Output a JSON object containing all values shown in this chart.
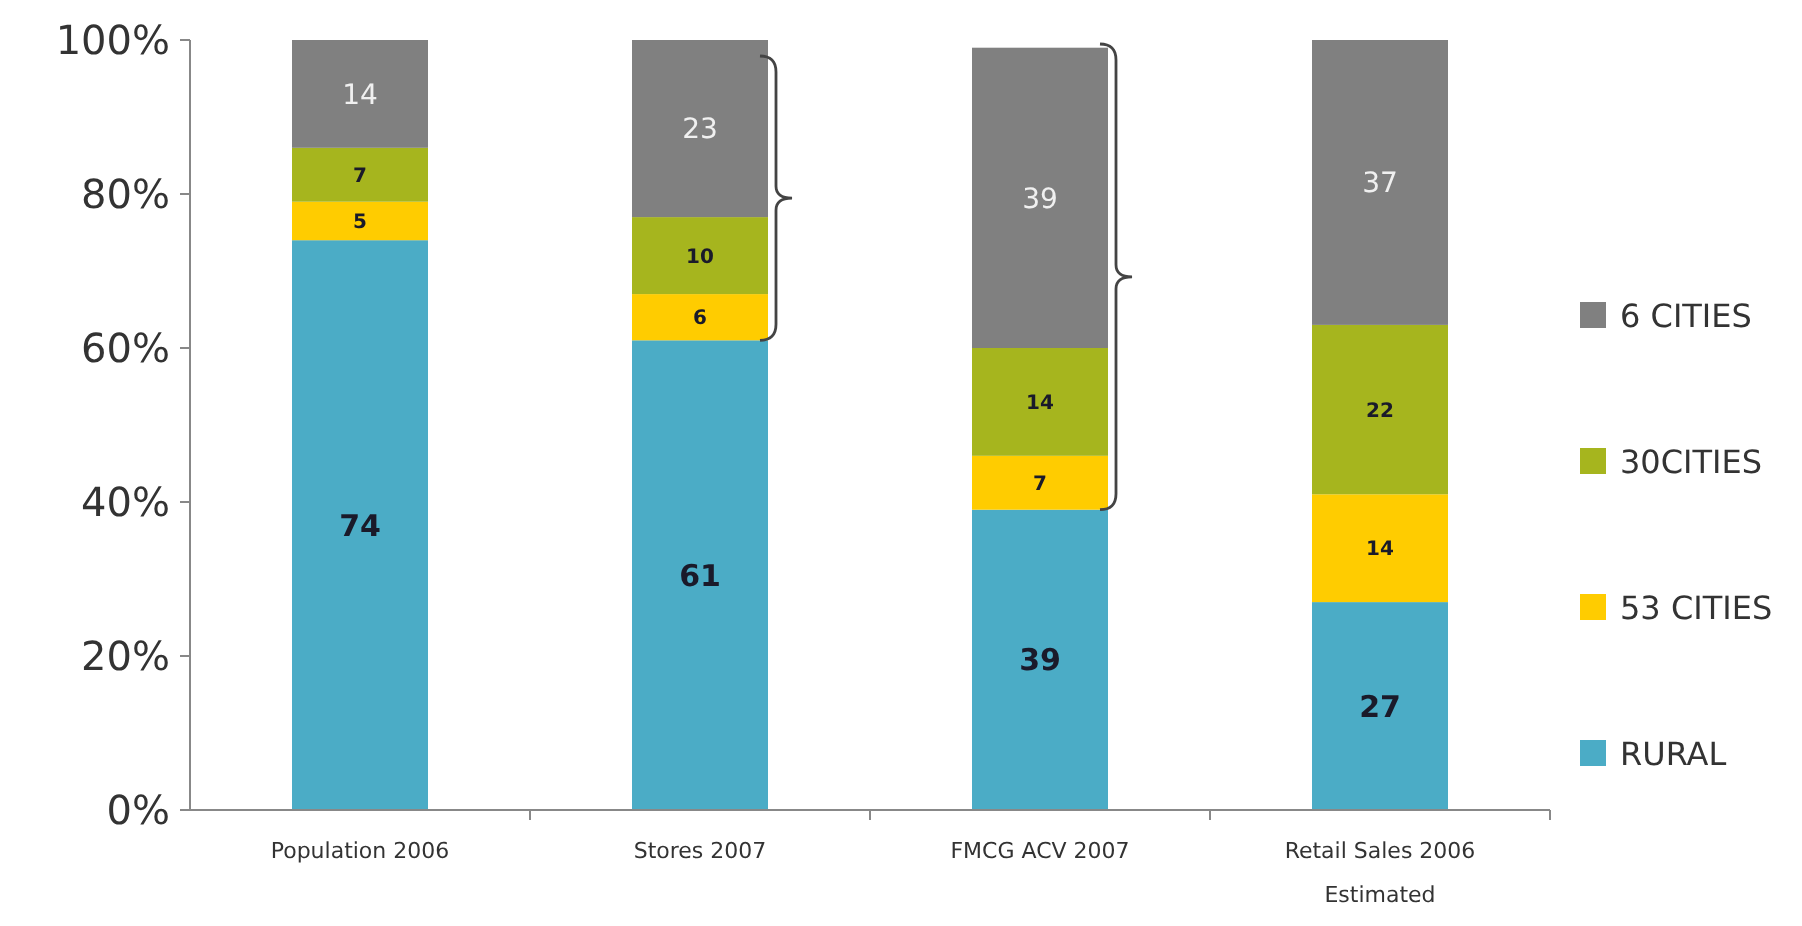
{
  "chart_data": {
    "type": "bar",
    "stacked": true,
    "categories": [
      "Population 2006",
      "Stores 2007",
      "FMCG ACV 2007",
      "Retail Sales 2006\nEstimated"
    ],
    "series": [
      {
        "name": "RURAL",
        "color": "#4bacc6",
        "values": [
          74,
          61,
          39,
          27
        ]
      },
      {
        "name": "53 CITIES",
        "color": "#ffcc00",
        "values": [
          5,
          6,
          7,
          14
        ]
      },
      {
        "name": "30CITIES",
        "color": "#a6b51e",
        "values": [
          7,
          10,
          14,
          22
        ]
      },
      {
        "name": "6 CITIES",
        "color": "#808080",
        "values": [
          14,
          23,
          39,
          37
        ]
      }
    ],
    "ylim": [
      0,
      100
    ],
    "yticks": [
      {
        "value": 0,
        "label": "0%"
      },
      {
        "value": 20,
        "label": "20%"
      },
      {
        "value": 40,
        "label": "40%"
      },
      {
        "value": 60,
        "label": "60%"
      },
      {
        "value": 80,
        "label": "80%"
      },
      {
        "value": 100,
        "label": "100%"
      }
    ],
    "data_labels": true,
    "legend": "right",
    "grid": false
  }
}
